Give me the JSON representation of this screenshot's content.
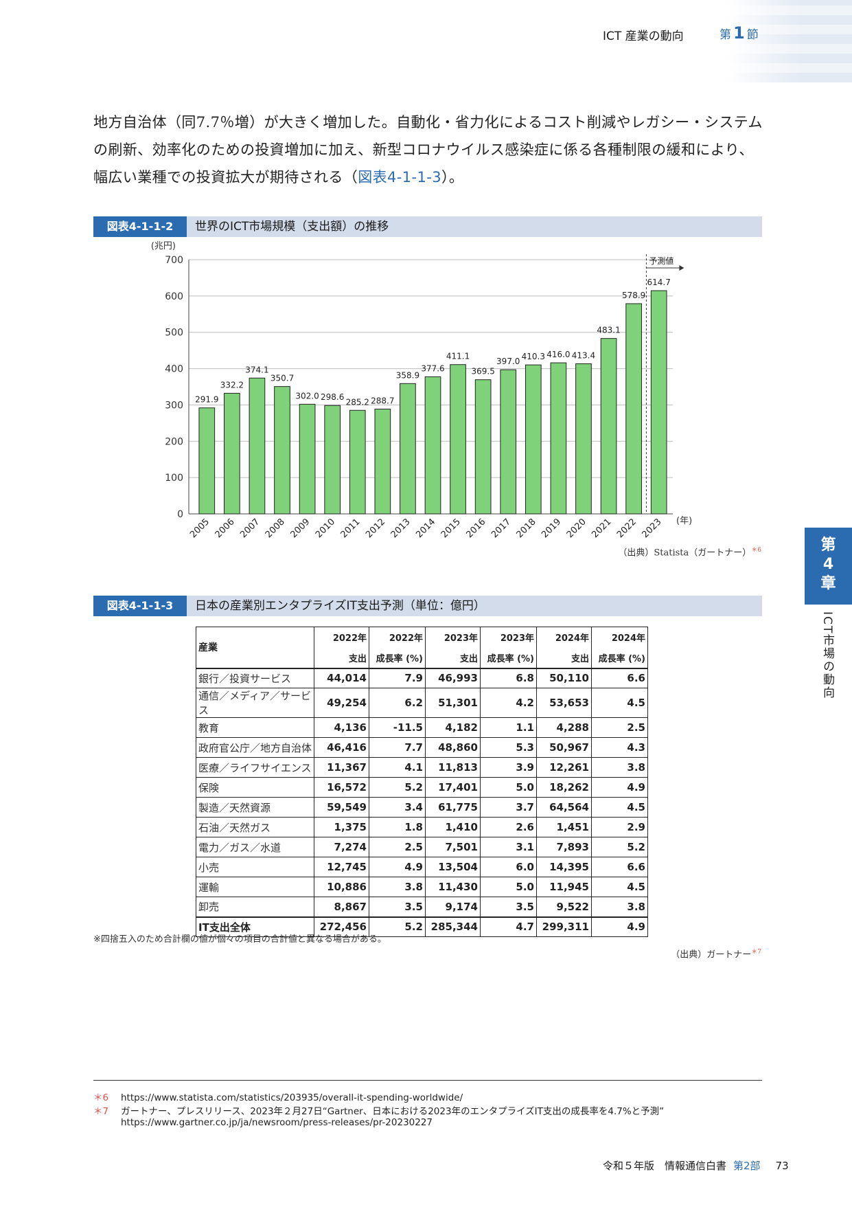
{
  "header": {
    "title": "ICT 産業の動向",
    "section_prefix": "第",
    "section_num": "1",
    "section_suffix": "節"
  },
  "paragraph": {
    "text": "地方自治体（同7.7％増）が大きく増加した。自動化・省力化によるコスト削減やレガシー・システムの刷新、効率化のための投資増加に加え、新型コロナウイルス感染症に係る各種制限の緩和により、幅広い業種での投資拡大が期待される（",
    "ref": "図表4-1-1-3",
    "end": "）。"
  },
  "figure1": {
    "tag": "図表4-1-1-2",
    "title": "世界のICT市場規模（支出額）の推移",
    "source": "（出典）Statista（ガートナー）",
    "source_mark": "＊6"
  },
  "chart_data": {
    "type": "bar",
    "categories": [
      "2005",
      "2006",
      "2007",
      "2008",
      "2009",
      "2010",
      "2011",
      "2012",
      "2013",
      "2014",
      "2015",
      "2016",
      "2017",
      "2018",
      "2019",
      "2020",
      "2021",
      "2022",
      "2023"
    ],
    "values": [
      291.9,
      332.2,
      374.1,
      350.7,
      302.0,
      298.6,
      285.2,
      288.7,
      358.9,
      377.6,
      411.1,
      369.5,
      397.0,
      410.3,
      416.0,
      413.4,
      483.1,
      578.9,
      614.7
    ],
    "value_labels": [
      "291.9",
      "332.2",
      "374.1",
      "350.7",
      "302.0",
      "298.6",
      "285.2",
      "288.7",
      "358.9",
      "377.6",
      "411.1",
      "369.5",
      "397.0",
      "410.3",
      "416.0",
      "413.4",
      "483.1",
      "578.9",
      "614.7"
    ],
    "ylabel": "(兆円)",
    "xlabel": "(年)",
    "ylim": [
      0,
      700
    ],
    "yticks": [
      "0",
      "100",
      "200",
      "300",
      "400",
      "500",
      "600",
      "700"
    ],
    "forecast_label": "予測値",
    "bar_color": "#7fd17a"
  },
  "figure2": {
    "tag": "図表4-1-1-3",
    "title": "日本の産業別エンタプライズIT支出予測（単位：億円）",
    "note": "※四捨五入のため合計欄の値が個々の項目の合計値と異なる場合がある。",
    "source": "（出典）ガートナー",
    "source_mark": "＊7"
  },
  "table": {
    "col0": "産業",
    "header_top": [
      "2022年",
      "2022年",
      "2023年",
      "2023年",
      "2024年",
      "2024年"
    ],
    "header_bottom": [
      "支出",
      "成長率 (%)",
      "支出",
      "成長率 (%)",
      "支出",
      "成長率 (%)"
    ],
    "rows": [
      [
        "銀行／投資サービス",
        "44,014",
        "7.9",
        "46,993",
        "6.8",
        "50,110",
        "6.6"
      ],
      [
        "通信／メディア／サービス",
        "49,254",
        "6.2",
        "51,301",
        "4.2",
        "53,653",
        "4.5"
      ],
      [
        "教育",
        "4,136",
        "-11.5",
        "4,182",
        "1.1",
        "4,288",
        "2.5"
      ],
      [
        "政府官公庁／地方自治体",
        "46,416",
        "7.7",
        "48,860",
        "5.3",
        "50,967",
        "4.3"
      ],
      [
        "医療／ライフサイエンス",
        "11,367",
        "4.1",
        "11,813",
        "3.9",
        "12,261",
        "3.8"
      ],
      [
        "保険",
        "16,572",
        "5.2",
        "17,401",
        "5.0",
        "18,262",
        "4.9"
      ],
      [
        "製造／天然資源",
        "59,549",
        "3.4",
        "61,775",
        "3.7",
        "64,564",
        "4.5"
      ],
      [
        "石油／天然ガス",
        "1,375",
        "1.8",
        "1,410",
        "2.6",
        "1,451",
        "2.9"
      ],
      [
        "電力／ガス／水道",
        "7,274",
        "2.5",
        "7,501",
        "3.1",
        "7,893",
        "5.2"
      ],
      [
        "小売",
        "12,745",
        "4.9",
        "13,504",
        "6.0",
        "14,395",
        "6.6"
      ],
      [
        "運輸",
        "10,886",
        "3.8",
        "11,430",
        "5.0",
        "11,945",
        "4.5"
      ],
      [
        "卸売",
        "8,867",
        "3.5",
        "9,174",
        "3.5",
        "9,522",
        "3.8"
      ]
    ],
    "total": [
      "IT支出全体",
      "272,456",
      "5.2",
      "285,344",
      "4.7",
      "299,311",
      "4.9"
    ]
  },
  "side": {
    "tab_line1": "第",
    "tab_line2": "4",
    "tab_line3": "章",
    "text": "ICT市場の動向"
  },
  "footnotes": [
    {
      "mark": "＊6",
      "text": "https://www.statista.com/statistics/203935/overall-it-spending-worldwide/"
    },
    {
      "mark": "＊7",
      "text": "ガートナー、プレスリリース、2023年２月27日“Gartner、日本における2023年のエンタプライズIT支出の成長率を4.7%と予測”"
    },
    {
      "mark": "",
      "text": "https://www.gartner.co.jp/ja/newsroom/press-releases/pr-20230227"
    }
  ],
  "footer": {
    "book": "令和５年版　情報通信白書",
    "part": "第2部",
    "page": "73"
  }
}
